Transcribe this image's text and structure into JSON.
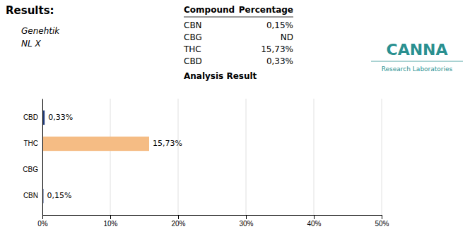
{
  "chart_data": {
    "type": "bar",
    "orientation": "horizontal",
    "title": "Results:",
    "subtitle": [
      "Genehtik",
      "NL X"
    ],
    "categories": [
      "CBD",
      "THC",
      "CBG",
      "CBN"
    ],
    "values": [
      0.33,
      15.73,
      0.0,
      0.15
    ],
    "value_labels": [
      "0,33%",
      "15,73%",
      null,
      "0,15%"
    ],
    "colors": [
      "#1e3a7a",
      "#f5bc84",
      "#555555",
      "#1e3a7a"
    ],
    "xlim": [
      0,
      50
    ],
    "xticks": [
      {
        "value": 0,
        "label": "0%"
      },
      {
        "value": 10,
        "label": "10%"
      },
      {
        "value": 20,
        "label": "20%"
      },
      {
        "value": 30,
        "label": "30%"
      },
      {
        "value": 40,
        "label": "40%"
      },
      {
        "value": 50,
        "label": "50%"
      }
    ],
    "grid": true,
    "table": {
      "title": "Analysis Result",
      "columns": [
        "Compound",
        "Percentage"
      ],
      "rows": [
        [
          "CBN",
          "0,15%"
        ],
        [
          "CBG",
          "ND"
        ],
        [
          "THC",
          "15,73%"
        ],
        [
          "CBD",
          "0,33%"
        ]
      ]
    },
    "annotations": [
      {
        "text": "CANNA",
        "color": "#2a9090"
      },
      {
        "text": "Research Laboratories",
        "color": "#2a9090"
      }
    ]
  }
}
